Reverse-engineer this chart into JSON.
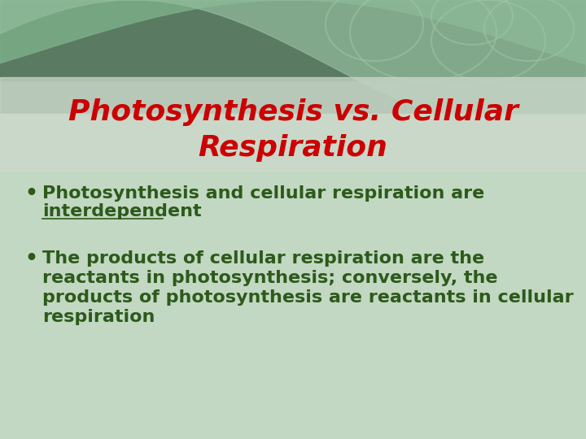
{
  "title_line1": "Photosynthesis vs. Cellular",
  "title_line2": "Respiration",
  "title_color": "#cc0000",
  "title_fontsize": 26,
  "bullet1_plain": "Photosynthesis and cellular respiration are ",
  "bullet1_underline": "interdependent",
  "bullet2_lines": [
    "The products of cellular respiration are the",
    "reactants in photosynthesis; conversely, the",
    "products of photosynthesis are reactants in cellular",
    "respiration"
  ],
  "bullet_color": "#2d5a1b",
  "bullet_fontsize": 16,
  "bullet_symbol": "•",
  "bg_dark_green": "#5a7a62",
  "bg_mid_green": "#7a9a82",
  "bg_light_green": "#b8d4be",
  "content_bg": "#c8dcc8",
  "wave_color": "#6a9272",
  "top_band_color": "#4a6e54"
}
